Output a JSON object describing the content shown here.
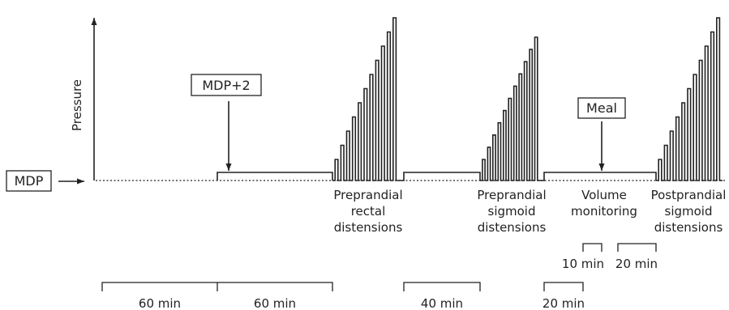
{
  "axis": {
    "y_label": "Pressure"
  },
  "boxes": {
    "baseline": "MDP",
    "step": "MDP+2",
    "meal": "Meal"
  },
  "phases": {
    "rectal": [
      "Preprandial",
      "rectal",
      "distensions"
    ],
    "sigmoid_pre": [
      "Preprandial",
      "sigmoid",
      "distensions"
    ],
    "volume": [
      "Volume",
      "monitoring"
    ],
    "sigmoid_post": [
      "Postprandial",
      "sigmoid",
      "distensions"
    ]
  },
  "sub_durations": {
    "a": "10 min",
    "b": "20 min"
  },
  "durations": [
    "60 min",
    "60 min",
    "40 min",
    "20 min"
  ],
  "distension_steps": 11
}
